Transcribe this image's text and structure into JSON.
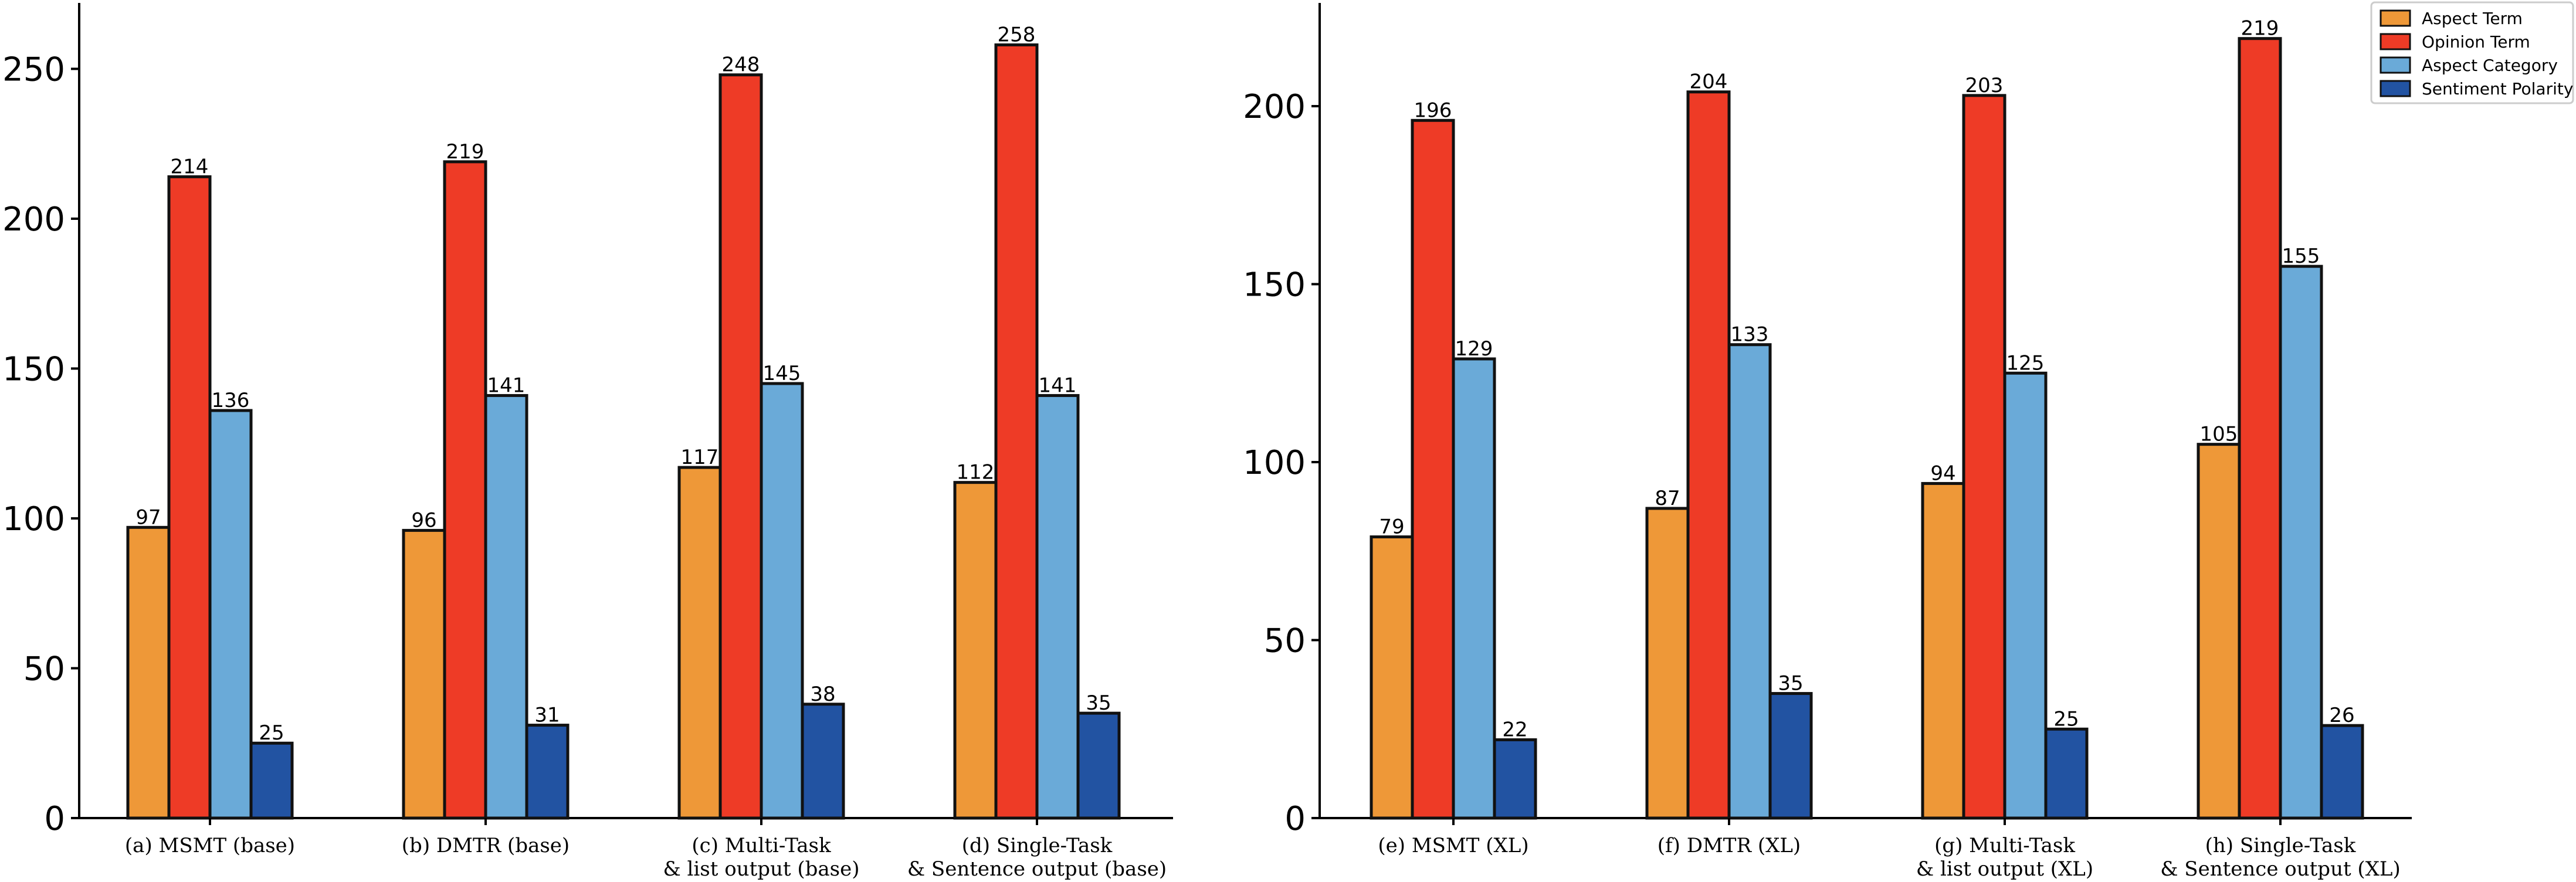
{
  "colors": {
    "aspect_term": "#EE9838",
    "opinion_term": "#EE3B26",
    "aspect_category": "#6AAAD8",
    "sentiment_polarity": "#2253A2"
  },
  "legend": [
    "Aspect Term",
    "Opinion Term",
    "Aspect Category",
    "Sentiment Polarity"
  ],
  "chart_data": [
    {
      "type": "bar",
      "title": "",
      "xlabel": "",
      "ylabel": "",
      "ylim": [
        0,
        272
      ],
      "yticks": [
        0,
        50,
        100,
        150,
        200,
        250
      ],
      "categories": [
        [
          "(a) MSMT (base)"
        ],
        [
          "(b) DMTR (base)"
        ],
        [
          "(c) Multi-Task",
          "& list output (base)"
        ],
        [
          "(d) Single-Task",
          "& Sentence output (base)"
        ]
      ],
      "series": [
        {
          "name": "Aspect Term",
          "values": [
            97,
            96,
            117,
            112
          ]
        },
        {
          "name": "Opinion Term",
          "values": [
            214,
            219,
            248,
            258
          ]
        },
        {
          "name": "Aspect Category",
          "values": [
            136,
            141,
            145,
            141
          ]
        },
        {
          "name": "Sentiment Polarity",
          "values": [
            25,
            31,
            38,
            35
          ]
        }
      ]
    },
    {
      "type": "bar",
      "title": "",
      "xlabel": "",
      "ylabel": "",
      "ylim": [
        0,
        229
      ],
      "yticks": [
        0,
        50,
        100,
        150,
        200
      ],
      "categories": [
        [
          "(e) MSMT (XL)"
        ],
        [
          "(f) DMTR (XL)"
        ],
        [
          "(g) Multi-Task",
          "& list output (XL)"
        ],
        [
          "(h) Single-Task",
          "& Sentence output (XL)"
        ]
      ],
      "series": [
        {
          "name": "Aspect Term",
          "values": [
            79,
            87,
            94,
            105
          ]
        },
        {
          "name": "Opinion Term",
          "values": [
            196,
            204,
            203,
            219
          ]
        },
        {
          "name": "Aspect Category",
          "values": [
            129,
            133,
            125,
            155
          ]
        },
        {
          "name": "Sentiment Polarity",
          "values": [
            22,
            35,
            25,
            26
          ]
        }
      ],
      "legend_position": "top-right"
    }
  ]
}
